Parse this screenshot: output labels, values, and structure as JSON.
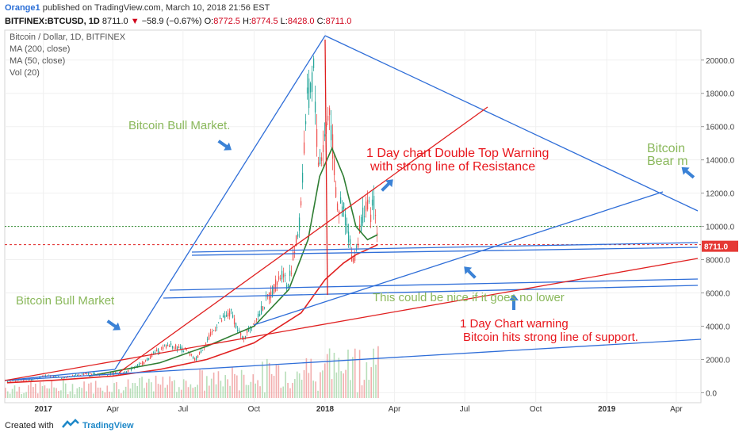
{
  "header": {
    "author": "Orange1",
    "published_text": "published on TradingView.com, March 10, 2018 21:56 EST",
    "symbol": "BITFINEX:BTCUSD, 1D",
    "last": "8711.0",
    "change": "−58.9 (−0.67%)",
    "ohlc_labels": {
      "o": "O:",
      "h": "H:",
      "l": "L:",
      "c": "C:"
    },
    "ohlc": {
      "o": "8772.5",
      "h": "8774.5",
      "l": "8428.0",
      "c": "8711.0"
    }
  },
  "legend": [
    "Bitcoin / Dollar, 1D, BITFINEX",
    "MA (200, close)",
    "MA (50, close)",
    "Vol (20)"
  ],
  "footer": {
    "made_with": "Created with",
    "brand": "TradingView"
  },
  "colors": {
    "price_label_bg": "#e53935",
    "trend_red": "#e02020",
    "trend_blue": "#2f6ed8",
    "annot_green": "#8ab85b",
    "annot_red": "#e8171d",
    "up": "#26a69a",
    "down": "#ef5350"
  },
  "chart_data": {
    "type": "line",
    "title": "",
    "xlabel": "",
    "ylabel": "",
    "x_ticks": [
      "2017",
      "Apr",
      "Jul",
      "Oct",
      "2018",
      "Apr",
      "Jul",
      "Oct",
      "2019",
      "Apr"
    ],
    "y_ticks": [
      "0.0",
      "2000.0",
      "4000.0",
      "6000.0",
      "8000.0",
      "10000.0",
      "12000.0",
      "14000.0",
      "16000.0",
      "18000.0",
      "20000.0"
    ],
    "ylim": [
      -600,
      21800
    ],
    "x_range": [
      "2016-11-12",
      "2019-05-03"
    ],
    "last_price_label": "8711.0",
    "series": [
      {
        "name": "Bitcoin / Dollar, 1D, BITFINEX",
        "style": "candles",
        "x": [
          "2016-11-15",
          "2016-12-15",
          "2017-01-05",
          "2017-01-25",
          "2017-02-25",
          "2017-03-15",
          "2017-04-15",
          "2017-05-10",
          "2017-05-25",
          "2017-06-12",
          "2017-07-05",
          "2017-07-16",
          "2017-08-15",
          "2017-09-01",
          "2017-09-15",
          "2017-10-01",
          "2017-10-20",
          "2017-11-08",
          "2017-11-12",
          "2017-11-28",
          "2017-12-07",
          "2017-12-17",
          "2017-12-22",
          "2017-12-28",
          "2018-01-06",
          "2018-01-16",
          "2018-01-25",
          "2018-02-06",
          "2018-02-20",
          "2018-03-01",
          "2018-03-05",
          "2018-03-10"
        ],
        "y": [
          700,
          780,
          1050,
          900,
          1150,
          1100,
          1200,
          1800,
          2400,
          2900,
          2500,
          1950,
          4200,
          4800,
          3200,
          4300,
          5800,
          7400,
          6200,
          10000,
          17000,
          19500,
          13800,
          14500,
          17200,
          11200,
          11000,
          7800,
          11200,
          10800,
          11600,
          8711
        ]
      },
      {
        "name": "MA (50, close)",
        "x": [
          "2017-03-01",
          "2017-06-01",
          "2017-08-01",
          "2017-10-01",
          "2017-11-15",
          "2017-12-10",
          "2017-12-25",
          "2018-01-10",
          "2018-01-25",
          "2018-02-10",
          "2018-02-25",
          "2018-03-10"
        ],
        "y": [
          1000,
          1800,
          2800,
          4000,
          6200,
          9200,
          13000,
          14700,
          13000,
          10000,
          9200,
          9500
        ]
      },
      {
        "name": "MA (200, close)",
        "x": [
          "2016-11-15",
          "2017-01-15",
          "2017-04-01",
          "2017-06-01",
          "2017-08-01",
          "2017-10-01",
          "2017-12-01",
          "2018-01-01",
          "2018-01-25",
          "2018-02-10",
          "2018-03-01",
          "2018-03-10"
        ],
        "y": [
          600,
          750,
          1000,
          1400,
          2000,
          3000,
          4800,
          6800,
          7800,
          8300,
          8700,
          8900
        ]
      }
    ],
    "volume_note": "volume histogram shown at bottom",
    "horizontal_levels": [
      10000,
      8900
    ],
    "annotations": [
      {
        "text": "Bitcoin Bull Market.",
        "color": "green"
      },
      {
        "text": "Bitcoin Bull Market",
        "color": "green"
      },
      {
        "text": "1 Day chart Double Top Warning",
        "color": "red"
      },
      {
        "text": "with strong line of Resistance",
        "color": "red"
      },
      {
        "text": "Bitcoin",
        "color": "green"
      },
      {
        "text": "Bear m",
        "color": "green"
      },
      {
        "text": "This could be nice if it goes no lower",
        "color": "green"
      },
      {
        "text": "1 Day Chart warning",
        "color": "red"
      },
      {
        "text": "Bitcoin hits strong line of support.",
        "color": "red"
      }
    ]
  }
}
